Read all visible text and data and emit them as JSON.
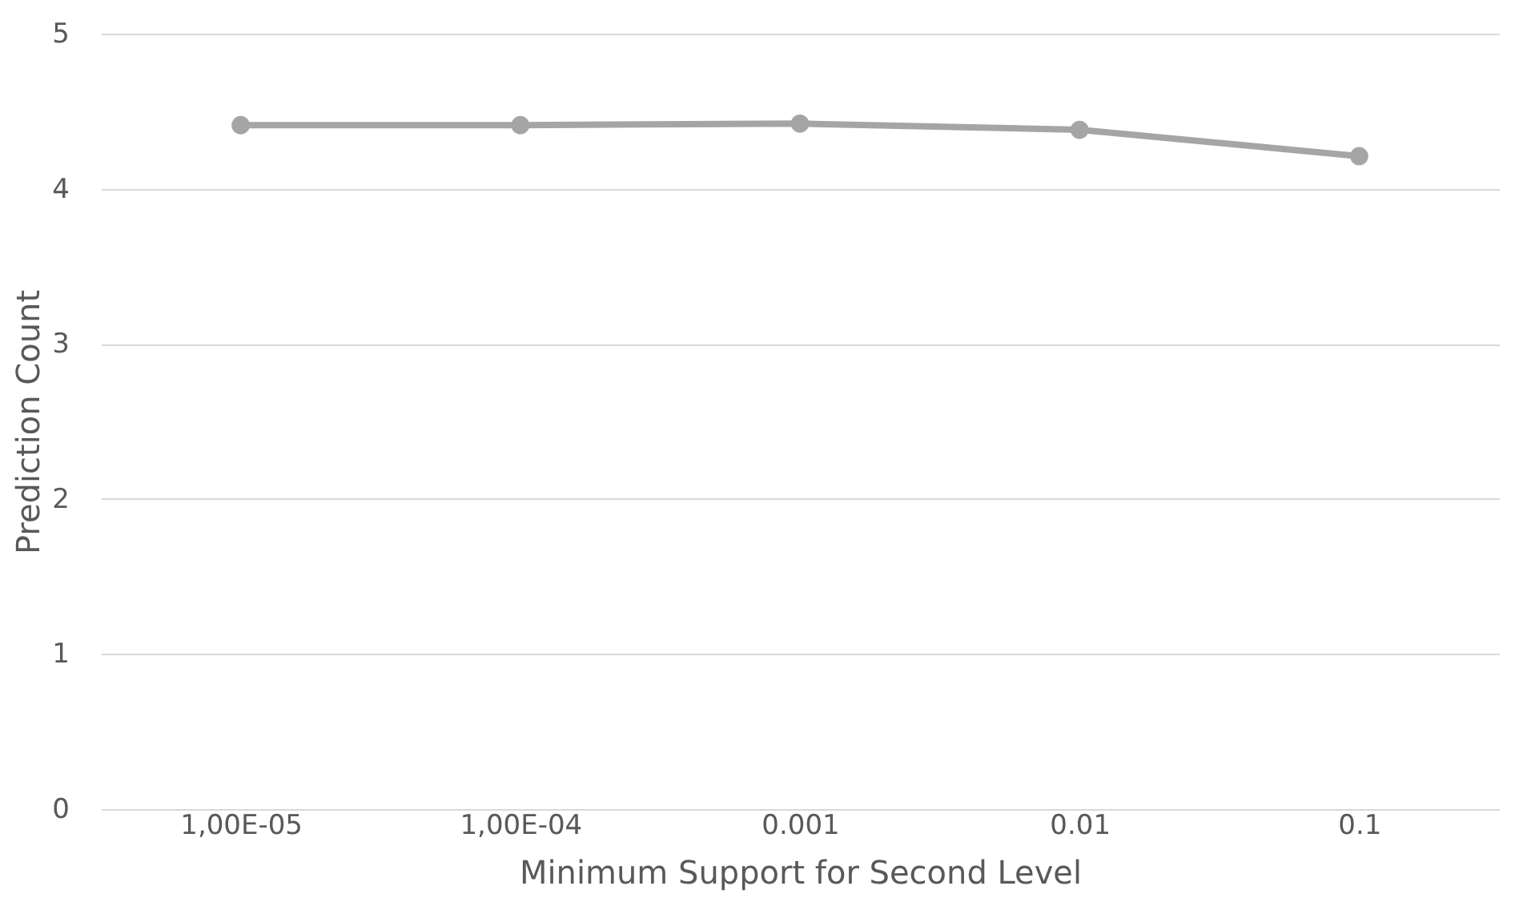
{
  "chart_data": {
    "type": "line",
    "xlabel": "Minimum Support for Second Level",
    "ylabel": "Prediction Count",
    "categories": [
      "1,00E-05",
      "1,00E-04",
      "0.001",
      "0.01",
      "0.1"
    ],
    "series": [
      {
        "color": "#a5a5a5",
        "values": [
          4.41,
          4.41,
          4.42,
          4.38,
          4.21
        ]
      }
    ],
    "ylim": [
      0,
      5
    ],
    "yticks": [
      0,
      1,
      2,
      3,
      4,
      5
    ],
    "grid": "y",
    "marker": "circle",
    "line_style": "solid"
  }
}
